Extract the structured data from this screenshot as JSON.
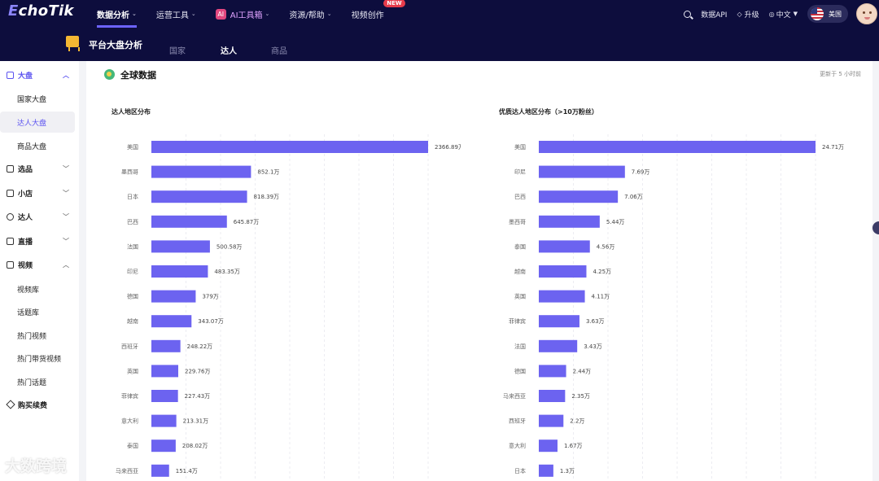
{
  "header": {
    "logo": "EchoTik",
    "nav": [
      {
        "label": "数据分析",
        "caret": "⌄"
      },
      {
        "label": "运营工具",
        "caret": "⌄"
      },
      {
        "label": "AI工具箱",
        "caret": "⌄"
      },
      {
        "label": "资源/帮助",
        "caret": "⌄"
      },
      {
        "label": "视频创作"
      }
    ],
    "ai_badge": "AI",
    "new_badge": "NEW",
    "data_api": "数据API",
    "upgrade": "升级",
    "language": "中文",
    "region": "美国"
  },
  "subheader": {
    "title": "平台大盘分析",
    "tabs": [
      "国家",
      "达人",
      "商品"
    ],
    "active_tab": "达人"
  },
  "sidebar": {
    "groups": [
      {
        "label": "大盘",
        "open": true,
        "items": [
          "国家大盘",
          "达人大盘",
          "商品大盘"
        ],
        "selected": "达人大盘"
      },
      {
        "label": "选品"
      },
      {
        "label": "小店"
      },
      {
        "label": "达人"
      },
      {
        "label": "直播"
      },
      {
        "label": "视频",
        "open": true,
        "items": [
          "视频库",
          "话题库",
          "热门视频",
          "热门带货视频",
          "热门话题"
        ]
      },
      {
        "label": "购买续费"
      }
    ]
  },
  "main": {
    "title": "全球数据",
    "updated": "更新于 5 小时前"
  },
  "chart_data": [
    {
      "type": "bar",
      "orientation": "horizontal",
      "title": "达人地区分布",
      "categories": [
        "美国",
        "墨西哥",
        "日本",
        "巴西",
        "法国",
        "印尼",
        "德国",
        "越南",
        "西班牙",
        "英国",
        "菲律宾",
        "意大利",
        "泰国",
        "马来西亚"
      ],
      "values": [
        2366.89,
        852.1,
        818.39,
        645.87,
        500.58,
        483.35,
        379,
        343.07,
        248.22,
        229.76,
        227.43,
        213.31,
        208.02,
        151.4
      ],
      "value_labels": [
        "2366.89万",
        "852.1万",
        "818.39万",
        "645.87万",
        "500.58万",
        "483.35万",
        "379万",
        "343.07万",
        "248.22万",
        "229.76万",
        "227.43万",
        "213.31万",
        "208.02万",
        "151.4万"
      ],
      "unit": "万",
      "color": "#6c63f0"
    },
    {
      "type": "bar",
      "orientation": "horizontal",
      "title": "优质达人地区分布（>10万粉丝）",
      "categories": [
        "美国",
        "印尼",
        "巴西",
        "墨西哥",
        "泰国",
        "越南",
        "英国",
        "菲律宾",
        "法国",
        "德国",
        "马来西亚",
        "西班牙",
        "意大利",
        "日本"
      ],
      "values": [
        24.71,
        7.69,
        7.06,
        5.44,
        4.56,
        4.25,
        4.11,
        3.63,
        3.43,
        2.44,
        2.35,
        2.2,
        1.67,
        1.3
      ],
      "value_labels": [
        "24.71万",
        "7.69万",
        "7.06万",
        "5.44万",
        "4.56万",
        "4.25万",
        "4.11万",
        "3.63万",
        "3.43万",
        "2.44万",
        "2.35万",
        "2.2万",
        "1.67万",
        "1.3万"
      ],
      "unit": "万",
      "color": "#6c63f0"
    }
  ],
  "watermark": "大数跨境",
  "colors": {
    "header_bg": "#0d0d3d",
    "accent": "#6c63ff",
    "bar": "#6c63f0",
    "new_badge": "#e63b4b"
  }
}
